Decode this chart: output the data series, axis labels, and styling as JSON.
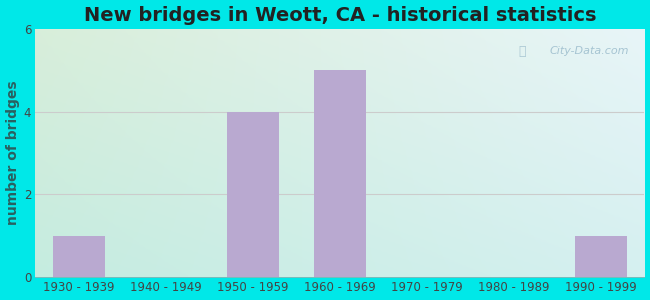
{
  "title": "New bridges in Weott, CA - historical statistics",
  "categories": [
    "1930 - 1939",
    "1940 - 1949",
    "1950 - 1959",
    "1960 - 1969",
    "1970 - 1979",
    "1980 - 1989",
    "1990 - 1999"
  ],
  "values": [
    1,
    0,
    4,
    5,
    0,
    0,
    1
  ],
  "bar_color": "#b9a9d0",
  "ylabel": "number of bridges",
  "ylim": [
    0,
    6
  ],
  "yticks": [
    0,
    2,
    4,
    6
  ],
  "background_outer": "#00e8e8",
  "background_inner_topleft": "#d8eeda",
  "background_inner_topright": "#e8f5f8",
  "background_inner_bottomleft": "#c5ece0",
  "background_inner_bottomright": "#d5f0f0",
  "grid_color": "#cccccc",
  "title_fontsize": 14,
  "ylabel_fontsize": 10,
  "tick_fontsize": 8.5,
  "ylabel_color": "#2a6060",
  "tick_color": "#444444",
  "watermark": "City-Data.com"
}
